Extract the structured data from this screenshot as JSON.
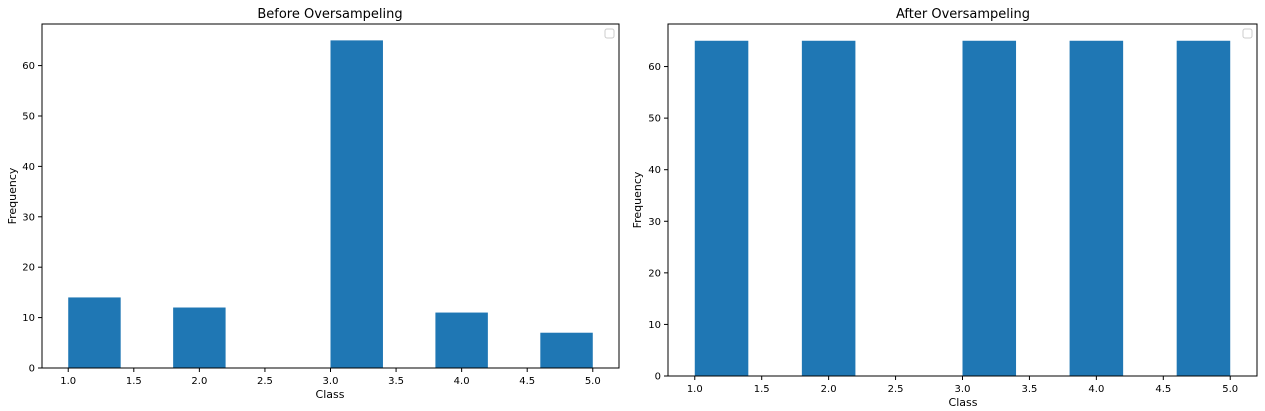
{
  "colors": {
    "bar": "#1f77b4",
    "axis": "#000000",
    "background": "#ffffff"
  },
  "chart_data": [
    {
      "type": "bar",
      "title": "Before Oversampeling",
      "xlabel": "Class",
      "ylabel": "Frequency",
      "xlim": [
        0.8,
        5.2
      ],
      "ylim": [
        0,
        68.25
      ],
      "xticks": [
        1.0,
        1.5,
        2.0,
        2.5,
        3.0,
        3.5,
        4.0,
        4.5,
        5.0
      ],
      "xtick_labels": [
        "1.0",
        "1.5",
        "2.0",
        "2.5",
        "3.0",
        "3.5",
        "4.0",
        "4.5",
        "5.0"
      ],
      "yticks": [
        0,
        10,
        20,
        30,
        40,
        50,
        60
      ],
      "ytick_labels": [
        "0",
        "10",
        "20",
        "30",
        "40",
        "50",
        "60"
      ],
      "bins": [
        {
          "x0": 1.0,
          "x1": 1.4,
          "value": 14
        },
        {
          "x0": 1.8,
          "x1": 2.2,
          "value": 12
        },
        {
          "x0": 3.0,
          "x1": 3.4,
          "value": 65
        },
        {
          "x0": 3.8,
          "x1": 4.2,
          "value": 11
        },
        {
          "x0": 4.6,
          "x1": 5.0,
          "value": 7
        }
      ],
      "legend": "top-right (empty)"
    },
    {
      "type": "bar",
      "title": "After Oversampeling",
      "xlabel": "Class",
      "ylabel": "Frequency",
      "xlim": [
        0.8,
        5.2
      ],
      "ylim": [
        0,
        68.25
      ],
      "xticks": [
        1.0,
        1.5,
        2.0,
        2.5,
        3.0,
        3.5,
        4.0,
        4.5,
        5.0
      ],
      "xtick_labels": [
        "1.0",
        "1.5",
        "2.0",
        "2.5",
        "3.0",
        "3.5",
        "4.0",
        "4.5",
        "5.0"
      ],
      "yticks": [
        0,
        10,
        20,
        30,
        40,
        50,
        60
      ],
      "ytick_labels": [
        "0",
        "10",
        "20",
        "30",
        "40",
        "50",
        "60"
      ],
      "bins": [
        {
          "x0": 1.0,
          "x1": 1.4,
          "value": 65
        },
        {
          "x0": 1.8,
          "x1": 2.2,
          "value": 65
        },
        {
          "x0": 3.0,
          "x1": 3.4,
          "value": 65
        },
        {
          "x0": 3.8,
          "x1": 4.2,
          "value": 65
        },
        {
          "x0": 4.6,
          "x1": 5.0,
          "value": 65
        }
      ],
      "legend": "top-right (empty)"
    }
  ]
}
